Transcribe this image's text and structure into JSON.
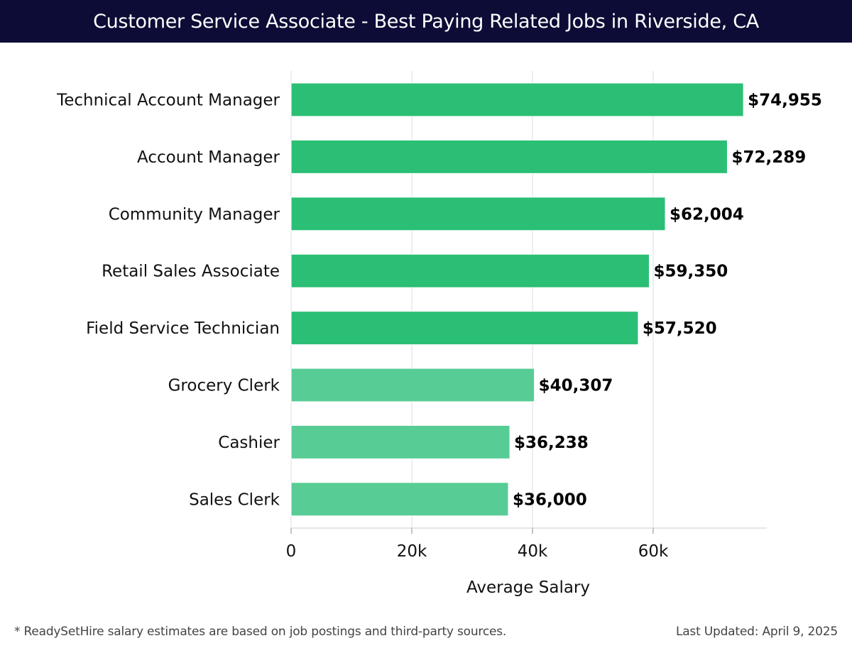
{
  "header": {
    "title": "Customer Service Associate - Best Paying Related Jobs in Riverside, CA"
  },
  "footer": {
    "note": "* ReadySetHire salary estimates are based on job postings and third-party sources.",
    "updated": "Last Updated: April 9, 2025"
  },
  "colors": {
    "header_bg": "#0c0c36",
    "bar_dark": "#2bbf75",
    "bar_light": "#58cc95"
  },
  "chart_data": {
    "type": "bar",
    "orientation": "horizontal",
    "title": "Customer Service Associate - Best Paying Related Jobs in Riverside, CA",
    "xlabel": "Average Salary",
    "ylabel": "",
    "xlim": [
      0,
      78500
    ],
    "xticks": [
      0,
      20000,
      40000,
      60000
    ],
    "xtick_labels": [
      "0",
      "20k",
      "40k",
      "60k"
    ],
    "grid": "vertical",
    "categories": [
      "Technical Account Manager",
      "Account Manager",
      "Community Manager",
      "Retail Sales Associate",
      "Field Service Technician",
      "Grocery Clerk",
      "Cashier",
      "Sales Clerk"
    ],
    "values": [
      74955,
      72289,
      62004,
      59350,
      57520,
      40307,
      36238,
      36000
    ],
    "value_labels": [
      "$74,955",
      "$72,289",
      "$62,004",
      "$59,350",
      "$57,520",
      "$40,307",
      "$36,238",
      "$36,000"
    ]
  }
}
